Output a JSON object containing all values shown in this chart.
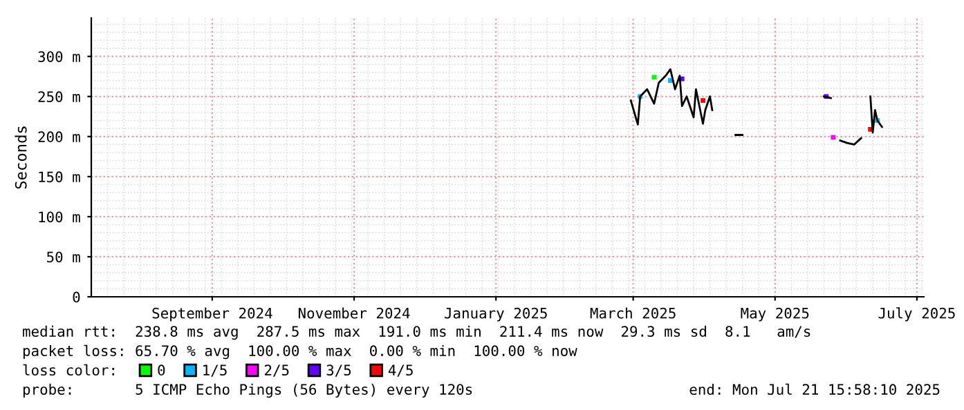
{
  "chart_data": {
    "type": "line",
    "ylabel": "Seconds",
    "legend_title": "loss color:",
    "legend": "bottom",
    "grid": true,
    "xlim": [
      "2024-07-11",
      "2025-07-04"
    ],
    "xticks": [
      {
        "value": "2024-09-01",
        "label": "September 2024"
      },
      {
        "value": "2024-11-01",
        "label": "November 2024"
      },
      {
        "value": "2025-01-01",
        "label": "January 2025"
      },
      {
        "value": "2025-03-01",
        "label": "March 2025"
      },
      {
        "value": "2025-05-01",
        "label": "May 2025"
      },
      {
        "value": "2025-07-01",
        "label": "July 2025"
      }
    ],
    "ylim": [
      0,
      348
    ],
    "yticks": [
      0,
      {
        "value": 50,
        "label": "50 m"
      },
      {
        "value": 100,
        "label": "100 m"
      },
      {
        "value": 150,
        "label": "150 m"
      },
      {
        "value": 200,
        "label": "200 m"
      },
      {
        "value": 250,
        "label": "250 m"
      },
      {
        "value": 300,
        "label": "300 m"
      }
    ],
    "series": [
      {
        "color": "#000000",
        "x": [
          "2025-02-28",
          "2025-03-03",
          "2025-03-04",
          "2025-03-07",
          "2025-03-10",
          "2025-03-12",
          "2025-03-15",
          "2025-03-17",
          "2025-03-19",
          "2025-03-21",
          "2025-03-22",
          "2025-03-24",
          "2025-03-27",
          "2025-03-28",
          "2025-03-31",
          "2025-04-01",
          "2025-04-03",
          "2025-04-04",
          "2025-04-10",
          "2025-04-14",
          "2025-04-17",
          "2025-04-20",
          "2025-05-22",
          "2025-05-25",
          "2025-05-27",
          "2025-05-29",
          "2025-06-01",
          "2025-06-04",
          "2025-06-07",
          "2025-06-09",
          "2025-06-11",
          "2025-06-12",
          "2025-06-13",
          "2025-06-14",
          "2025-06-16"
        ],
        "values": [
          245,
          215,
          250,
          259,
          241,
          267,
          276,
          284,
          259,
          276,
          238,
          250,
          224,
          259,
          216,
          233,
          250,
          233,
          null,
          202,
          202,
          null,
          250,
          248,
          null,
          195,
          192,
          190,
          198,
          null,
          250,
          205,
          233,
          220,
          212
        ]
      },
      {
        "type": "scatter",
        "name": "0",
        "color": "#00ff00",
        "x": [
          "2025-03-10"
        ],
        "values": [
          274
        ]
      },
      {
        "type": "scatter",
        "name": "1/5",
        "color": "#00b8ff",
        "x": [
          "2025-03-04",
          "2025-03-17",
          "2025-06-14"
        ],
        "values": [
          250,
          270,
          220
        ]
      },
      {
        "type": "scatter",
        "name": "2/5",
        "color": "#ff00ff",
        "x": [
          "2025-05-26"
        ],
        "values": [
          199
        ]
      },
      {
        "type": "scatter",
        "name": "3/5",
        "color": "#6600ff",
        "x": [
          "2025-03-22",
          "2025-05-23"
        ],
        "values": [
          272,
          250
        ]
      },
      {
        "type": "scatter",
        "name": "4/5",
        "color": "#ff0000",
        "x": [
          "2025-03-31",
          "2025-06-11"
        ],
        "values": [
          245,
          209
        ]
      }
    ],
    "annotations": [
      "median rtt:  238.8 ms avg  287.5 ms max  191.0 ms min  211.4 ms now  29.3 ms sd  8.1   am/s",
      "packet loss: 65.70 % avg  100.00 % max  0.00 % min  100.00 % now",
      "probe:       5 ICMP Echo Pings (56 Bytes) every 120s",
      "end: Mon Jul 21 15:58:10 2025"
    ]
  }
}
